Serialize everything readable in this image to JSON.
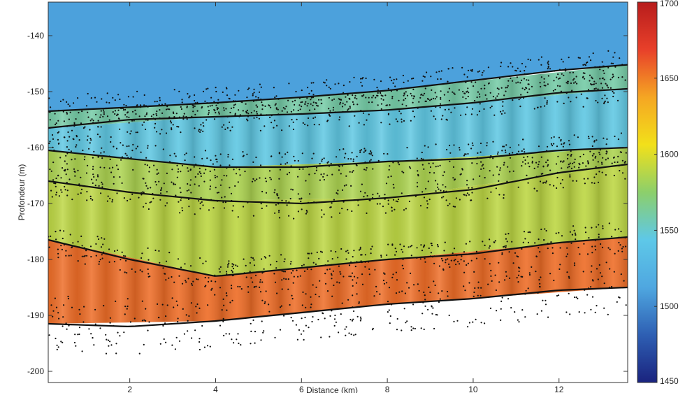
{
  "chart_data": {
    "type": "heatmap",
    "xlabel": "Distance (km)",
    "ylabel": "Profondeur (m)",
    "xlim": [
      0.1,
      13.6
    ],
    "ylim": [
      -202,
      -134
    ],
    "x_ticks": [
      2,
      4,
      6,
      8,
      10,
      12
    ],
    "y_ticks": [
      -140,
      -150,
      -160,
      -170,
      -180,
      -190,
      -200
    ],
    "colorbar": {
      "min": 1450,
      "max": 1700,
      "ticks": [
        1450,
        1500,
        1550,
        1600,
        1650,
        1700
      ],
      "colormap": [
        "#1a237e",
        "#2e5fb3",
        "#4fa7e0",
        "#5ec8e8",
        "#8ccf6b",
        "#f2e01a",
        "#f5a623",
        "#e8402a",
        "#b71c1c"
      ]
    },
    "water_value": 1510,
    "boundaries": [
      {
        "x": [
          0.1,
          2,
          4,
          6,
          8,
          10,
          12,
          13.6
        ],
        "y": [
          -153.5,
          -152.8,
          -152,
          -151,
          -149.8,
          -148,
          -146.2,
          -145.2
        ]
      },
      {
        "x": [
          0.1,
          2,
          4,
          6,
          8,
          10,
          12,
          13.6
        ],
        "y": [
          -156.5,
          -155,
          -154.5,
          -154,
          -153.3,
          -152,
          -150.2,
          -149.5
        ]
      },
      {
        "x": [
          0.1,
          2,
          4,
          6,
          8,
          10,
          12,
          13.6
        ],
        "y": [
          -160.5,
          -162,
          -163.5,
          -163.5,
          -162.5,
          -162,
          -160.5,
          -160
        ]
      },
      {
        "x": [
          0.1,
          2,
          4,
          6,
          8,
          10,
          12,
          13.6
        ],
        "y": [
          -166,
          -168,
          -169.5,
          -170,
          -169,
          -167.5,
          -164.5,
          -163
        ]
      },
      {
        "x": [
          0.1,
          2,
          4,
          6,
          8,
          10,
          12,
          13.6
        ],
        "y": [
          -176.5,
          -180,
          -183,
          -181.5,
          -180,
          -179,
          -177,
          -176
        ]
      },
      {
        "x": [
          0.1,
          2,
          4,
          6,
          8,
          10,
          12,
          13.6
        ],
        "y": [
          -191.5,
          -192,
          -191,
          -189.5,
          -188,
          -187,
          -185.5,
          -185
        ]
      }
    ],
    "layers": [
      {
        "x": [
          0.1,
          4,
          8,
          13.6
        ],
        "top": [
          -153.5,
          -152,
          -149.8,
          -145.2
        ],
        "bottom": [
          -156.5,
          -154.5,
          -153.3,
          -149.5
        ],
        "value": 1560
      },
      {
        "x": [
          0.1,
          4,
          8,
          13.6
        ],
        "top": [
          -156.5,
          -154.5,
          -153.3,
          -149.5
        ],
        "bottom": [
          -160.5,
          -163.5,
          -162.5,
          -160
        ],
        "value": 1545
      },
      {
        "x": [
          0.1,
          4,
          8,
          13.6
        ],
        "top": [
          -160.5,
          -163.5,
          -162.5,
          -160
        ],
        "bottom": [
          -166,
          -169.5,
          -169,
          -163
        ],
        "value": 1585
      },
      {
        "x": [
          0.1,
          4,
          8,
          13.6
        ],
        "top": [
          -166,
          -169.5,
          -169,
          -163
        ],
        "bottom": [
          -176.5,
          -183,
          -180,
          -176
        ],
        "value": 1590
      },
      {
        "x": [
          0.1,
          4,
          8,
          13.6
        ],
        "top": [
          -176.5,
          -183,
          -180,
          -176
        ],
        "bottom": [
          -191.5,
          -191,
          -188,
          -185
        ],
        "value": 1655
      }
    ]
  }
}
